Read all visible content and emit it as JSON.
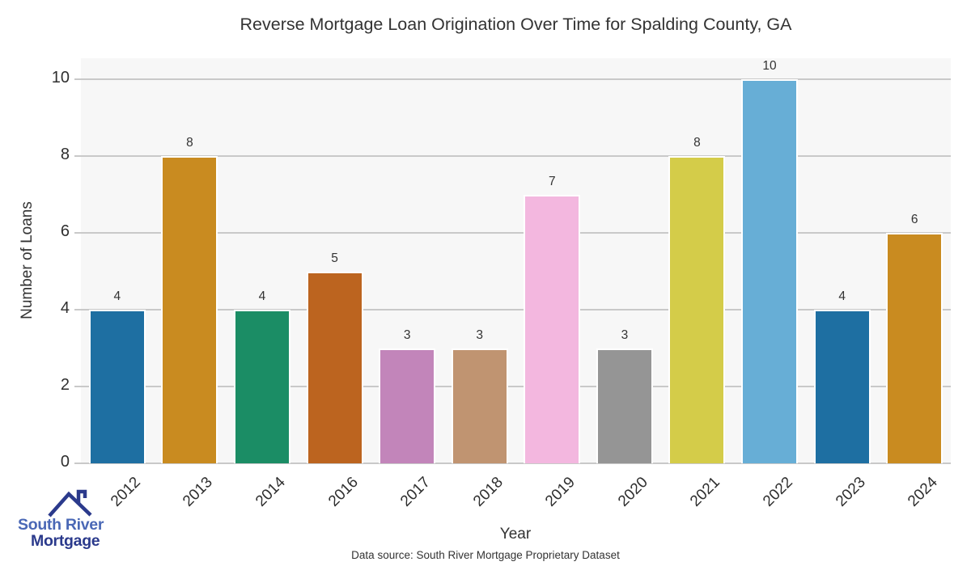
{
  "title": "Reverse Mortgage Loan Origination Over Time for Spalding County, GA",
  "footer": {
    "data_source": "Data source: South River Mortgage Proprietary Dataset"
  },
  "logo": {
    "line1": "South River",
    "line2": "Mortgage",
    "color_primary": "#4a68b6",
    "color_dark": "#2b3a8c"
  },
  "chart_data": {
    "type": "bar",
    "title": "Reverse Mortgage Loan Origination Over Time for Spalding County, GA",
    "xlabel": "Year",
    "ylabel": "Number of Loans",
    "categories": [
      "2012",
      "2013",
      "2014",
      "2016",
      "2017",
      "2018",
      "2019",
      "2020",
      "2021",
      "2022",
      "2023",
      "2024"
    ],
    "values": [
      4,
      8,
      4,
      5,
      3,
      3,
      7,
      3,
      8,
      10,
      4,
      6
    ],
    "bar_colors": [
      "#1e6fa2",
      "#c98b20",
      "#1b8d65",
      "#bc641f",
      "#c285ba",
      "#c09471",
      "#f3b7df",
      "#959595",
      "#d4cc49",
      "#67aed6",
      "#1e6fa2",
      "#c98b20"
    ],
    "yticks": [
      0,
      2,
      4,
      6,
      8,
      10
    ],
    "ylim": [
      0,
      10.55
    ],
    "grid": true,
    "legend_position": "none",
    "plot_background": "#f7f7f7",
    "grid_color": "#c9c9c9"
  }
}
